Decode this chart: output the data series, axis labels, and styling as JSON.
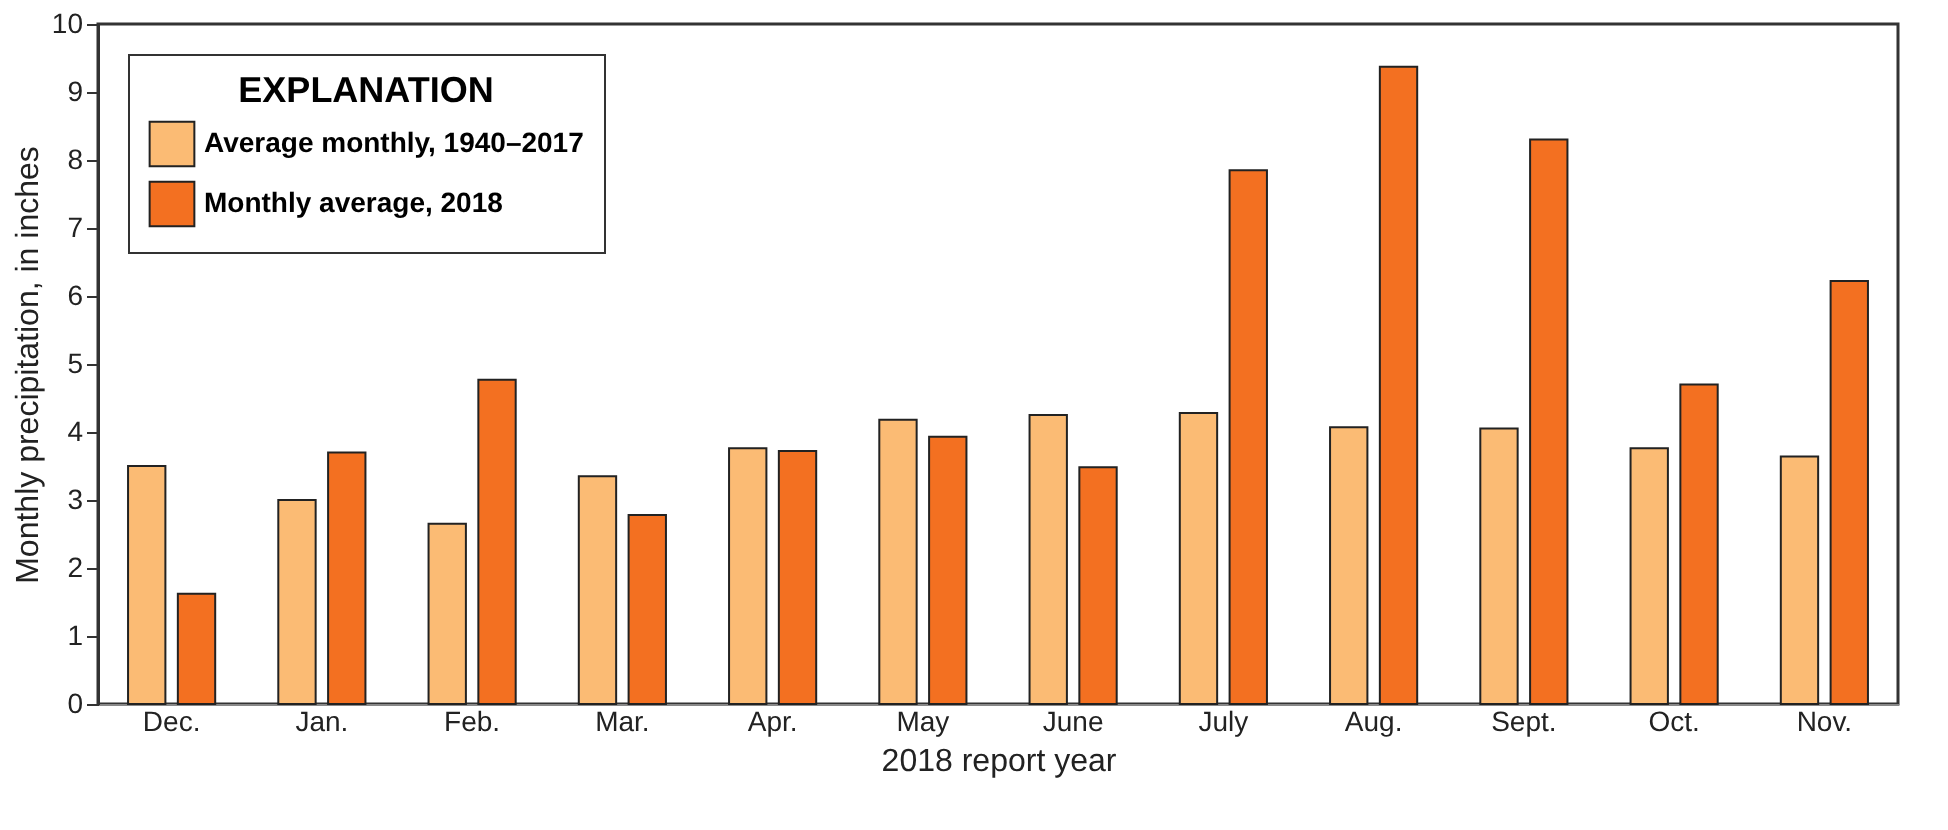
{
  "chart_data": {
    "type": "bar",
    "xlabel": "2018 report year",
    "ylabel": "Monthly precipitation, in inches",
    "legend_title": "EXPLANATION",
    "categories": [
      "Dec.",
      "Jan.",
      "Feb.",
      "Mar.",
      "Apr.",
      "May",
      "June",
      "July",
      "Aug.",
      "Sept.",
      "Oct.",
      "Nov."
    ],
    "series": [
      {
        "name": "Average monthly, 1940–2017",
        "color": "#fbbb74",
        "values": [
          3.5,
          3.0,
          2.65,
          3.35,
          3.76,
          4.18,
          4.25,
          4.28,
          4.07,
          4.05,
          3.76,
          3.64
        ]
      },
      {
        "name": "Monthly average, 2018",
        "color": "#f37021",
        "values": [
          1.62,
          3.7,
          4.77,
          2.78,
          3.72,
          3.93,
          3.48,
          7.85,
          9.37,
          8.3,
          4.7,
          6.22
        ]
      }
    ],
    "ylim": [
      0,
      10
    ],
    "yticks": [
      0,
      1,
      2,
      3,
      4,
      5,
      6,
      7,
      8,
      9,
      10
    ],
    "grid": false,
    "legend": "top left"
  }
}
